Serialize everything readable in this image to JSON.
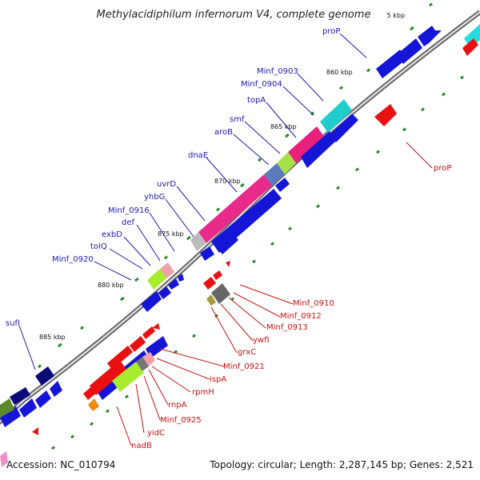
{
  "title": "Methylacidiphilum infernorum V4, complete genome",
  "accession": "Accession: NC_010794",
  "summary": "Topology: circular; Length: 2,287,145 bp; Genes: 2,521",
  "colors": {
    "forward_labels": "#1a1ab4",
    "reverse_labels": "#cc1111",
    "backbone": "#777777",
    "tick_marks": "#2a8a2a"
  },
  "ticks": [
    {
      "label": " 5 kbp"
    },
    {
      "label": "860 kbp"
    },
    {
      "label": "865 kbp"
    },
    {
      "label": "870 kbp"
    },
    {
      "label": "875 kbp"
    },
    {
      "label": "880 kbp"
    },
    {
      "label": "885 kbp"
    }
  ],
  "forward_genes": [
    {
      "name": "proP"
    },
    {
      "name": "Minf_0903"
    },
    {
      "name": "Minf_0904"
    },
    {
      "name": "topA"
    },
    {
      "name": "smf"
    },
    {
      "name": "aroB"
    },
    {
      "name": "dnaE"
    },
    {
      "name": "uvrD"
    },
    {
      "name": "yhbG"
    },
    {
      "name": "Minf_0916"
    },
    {
      "name": "def"
    },
    {
      "name": "exbD"
    },
    {
      "name": "tolQ"
    },
    {
      "name": "Minf_0920"
    },
    {
      "name": "sufI"
    }
  ],
  "reverse_genes": [
    {
      "name": "proP"
    },
    {
      "name": "Minf_0910"
    },
    {
      "name": "Minf_0912"
    },
    {
      "name": "Minf_0913"
    },
    {
      "name": "ywfI"
    },
    {
      "name": "grxC"
    },
    {
      "name": "Minf_0921"
    },
    {
      "name": "ispA"
    },
    {
      "name": "rpmH"
    },
    {
      "name": "rnpA"
    },
    {
      "name": "Minf_0925"
    },
    {
      "name": "yidC"
    },
    {
      "name": "nadB"
    }
  ]
}
